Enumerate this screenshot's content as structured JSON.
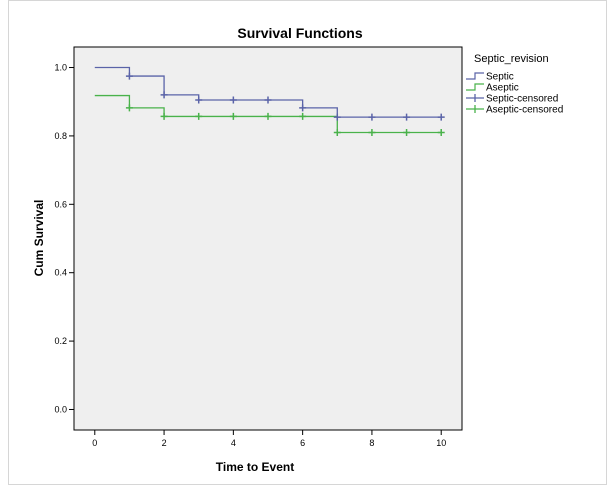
{
  "chart_data": {
    "type": "line",
    "subtype": "kaplan-meier step",
    "title": "Survival Functions",
    "xlabel": "Time to Event",
    "ylabel": "Cum Survival",
    "xlim": [
      -0.6,
      10.6
    ],
    "ylim": [
      -0.06,
      1.06
    ],
    "xticks": [
      0,
      2,
      4,
      6,
      8,
      10
    ],
    "yticks": [
      0.0,
      0.2,
      0.4,
      0.6,
      0.8,
      1.0
    ],
    "xtick_labels": [
      "0",
      "2",
      "4",
      "6",
      "8",
      "10"
    ],
    "ytick_labels": [
      "0.0",
      "0.2",
      "0.4",
      "0.6",
      "0.8",
      "1.0"
    ],
    "grid": false,
    "legend": {
      "title": "Septic_revision",
      "placement": "right",
      "entries": [
        {
          "label": "Septic",
          "series": "Septic",
          "kind": "step"
        },
        {
          "label": "Aseptic",
          "series": "Aseptic",
          "kind": "step"
        },
        {
          "label": "Septic-censored",
          "series": "Septic",
          "kind": "censor"
        },
        {
          "label": "Aseptic-censored",
          "series": "Aseptic",
          "kind": "censor"
        }
      ]
    },
    "series": [
      {
        "name": "Septic",
        "color": "#5a63a8",
        "steps": [
          [
            0,
            1.0
          ],
          [
            1,
            0.975
          ],
          [
            2,
            0.92
          ],
          [
            3,
            0.905
          ],
          [
            6,
            0.882
          ],
          [
            7,
            0.855
          ],
          [
            10,
            0.855
          ]
        ],
        "censored": [
          [
            1,
            0.975
          ],
          [
            2,
            0.92
          ],
          [
            3,
            0.905
          ],
          [
            4,
            0.905
          ],
          [
            5,
            0.905
          ],
          [
            6,
            0.882
          ],
          [
            7,
            0.855
          ],
          [
            8,
            0.855
          ],
          [
            9,
            0.855
          ],
          [
            10,
            0.855
          ]
        ]
      },
      {
        "name": "Aseptic",
        "color": "#49b24a",
        "steps": [
          [
            0,
            0.918
          ],
          [
            1,
            0.882
          ],
          [
            2,
            0.857
          ],
          [
            7,
            0.81
          ],
          [
            10,
            0.81
          ]
        ],
        "censored": [
          [
            1,
            0.882
          ],
          [
            2,
            0.857
          ],
          [
            3,
            0.857
          ],
          [
            4,
            0.857
          ],
          [
            5,
            0.857
          ],
          [
            6,
            0.857
          ],
          [
            7,
            0.81
          ],
          [
            8,
            0.81
          ],
          [
            9,
            0.81
          ],
          [
            10,
            0.81
          ]
        ]
      }
    ]
  }
}
